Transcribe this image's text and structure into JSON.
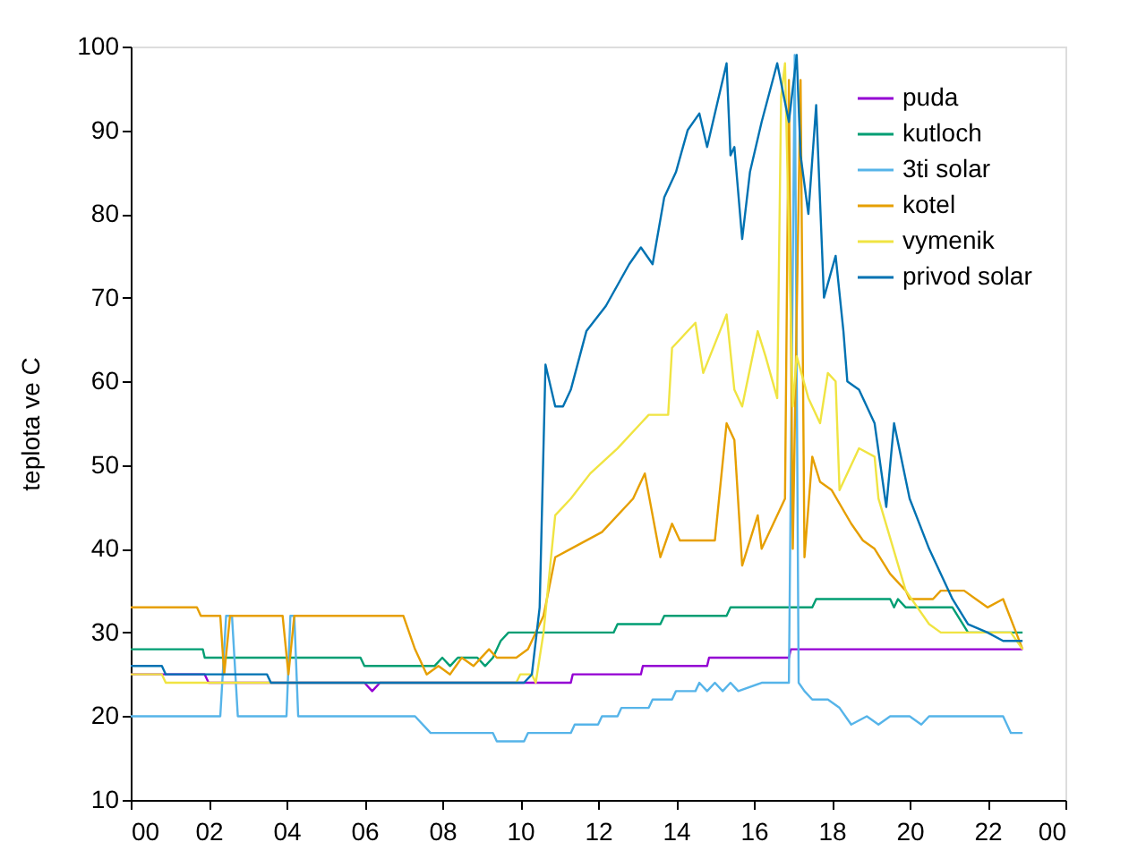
{
  "chart_data": {
    "type": "line",
    "ylabel": "teplota ve C",
    "xlim": [
      0,
      24
    ],
    "xticks": [
      {
        "value": 0,
        "label": "00"
      },
      {
        "value": 2,
        "label": "02"
      },
      {
        "value": 4,
        "label": "04"
      },
      {
        "value": 6,
        "label": "06"
      },
      {
        "value": 8,
        "label": "08"
      },
      {
        "value": 10,
        "label": "10"
      },
      {
        "value": 12,
        "label": "12"
      },
      {
        "value": 14,
        "label": "14"
      },
      {
        "value": 16,
        "label": "16"
      },
      {
        "value": 18,
        "label": "18"
      },
      {
        "value": 20,
        "label": "20"
      },
      {
        "value": 22,
        "label": "22"
      },
      {
        "value": 24,
        "label": "00"
      }
    ],
    "ylim": [
      10,
      100
    ],
    "yticks": [
      10,
      20,
      30,
      40,
      50,
      60,
      70,
      80,
      90,
      100
    ],
    "grid": false,
    "legend": "top right",
    "marker": "none",
    "line_style": "solid",
    "series": [
      {
        "name": "puda",
        "color": "#9400d3",
        "x": [
          0,
          1.9,
          2.0,
          6.0,
          6.2,
          6.4,
          11.3,
          11.35,
          13.1,
          13.15,
          14.8,
          14.85,
          16.9,
          16.95,
          22.9
        ],
        "values": [
          25,
          25,
          24,
          24,
          23,
          24,
          24,
          25,
          25,
          26,
          26,
          27,
          27,
          28,
          28
        ]
      },
      {
        "name": "kutloch",
        "color": "#009e73",
        "x": [
          0,
          1.85,
          1.9,
          5.9,
          6.0,
          7.8,
          8.0,
          8.2,
          8.4,
          8.9,
          9.1,
          9.3,
          9.5,
          9.7,
          12.4,
          12.5,
          13.6,
          13.7,
          15.3,
          15.4,
          17.5,
          17.6,
          19.5,
          19.6,
          19.7,
          19.9,
          21.1,
          21.5,
          22.9
        ],
        "values": [
          28,
          28,
          27,
          27,
          26,
          26,
          27,
          26,
          27,
          27,
          26,
          27,
          29,
          30,
          30,
          31,
          31,
          32,
          32,
          33,
          33,
          34,
          34,
          33,
          34,
          33,
          33,
          30,
          30
        ]
      },
      {
        "name": "3ti solar",
        "color": "#56b4e9",
        "x": [
          0,
          2.3,
          2.45,
          2.6,
          2.75,
          4.0,
          4.1,
          4.2,
          4.3,
          7.3,
          7.7,
          9.3,
          9.4,
          10.1,
          10.2,
          11.3,
          11.4,
          12.0,
          12.1,
          12.5,
          12.6,
          13.3,
          13.4,
          13.9,
          14.0,
          14.5,
          14.6,
          14.8,
          15.0,
          15.2,
          15.4,
          15.6,
          16.2,
          16.4,
          16.9,
          17.05,
          17.15,
          17.3,
          17.5,
          17.9,
          18.2,
          18.5,
          18.9,
          19.2,
          19.5,
          20.0,
          20.3,
          20.5,
          20.8,
          21.1,
          22.4,
          22.6,
          22.9
        ],
        "values": [
          20,
          20,
          32,
          32,
          20,
          20,
          32,
          32,
          20,
          20,
          18,
          18,
          17,
          17,
          18,
          18,
          19,
          19,
          20,
          20,
          21,
          21,
          22,
          22,
          23,
          23,
          24,
          23,
          24,
          23,
          24,
          23,
          24,
          24,
          24,
          99,
          24,
          23,
          22,
          22,
          21,
          19,
          20,
          19,
          20,
          20,
          19,
          20,
          20,
          20,
          20,
          18,
          18
        ]
      },
      {
        "name": "kotel",
        "color": "#e69f00",
        "x": [
          0,
          1.7,
          1.8,
          2.3,
          2.4,
          2.55,
          2.7,
          3.9,
          4.05,
          4.2,
          4.3,
          7.0,
          7.3,
          7.6,
          7.9,
          8.2,
          8.5,
          8.8,
          9.2,
          9.4,
          9.9,
          10.2,
          10.4,
          10.6,
          10.9,
          11.3,
          12.1,
          12.9,
          13.2,
          13.6,
          13.9,
          14.1,
          15.0,
          15.3,
          15.5,
          15.7,
          16.1,
          16.2,
          16.5,
          16.8,
          16.9,
          17.0,
          17.2,
          17.3,
          17.5,
          17.7,
          18.0,
          18.5,
          18.8,
          19.1,
          19.5,
          19.9,
          20.0,
          20.6,
          20.8,
          21.4,
          21.7,
          22.0,
          22.4,
          22.9
        ],
        "values": [
          33,
          33,
          32,
          32,
          25,
          32,
          32,
          32,
          25,
          32,
          32,
          32,
          28,
          25,
          26,
          25,
          27,
          26,
          28,
          27,
          27,
          28,
          30,
          32,
          39,
          40,
          42,
          46,
          49,
          39,
          43,
          41,
          41,
          55,
          53,
          38,
          44,
          40,
          43,
          46,
          96,
          40,
          96,
          39,
          51,
          48,
          47,
          43,
          41,
          40,
          37,
          35,
          34,
          34,
          35,
          35,
          34,
          33,
          34,
          28
        ]
      },
      {
        "name": "vymenik",
        "color": "#f0e442",
        "x": [
          0,
          0.8,
          0.9,
          9.9,
          10.0,
          10.3,
          10.4,
          10.6,
          10.9,
          11.3,
          11.8,
          12.5,
          13.1,
          13.3,
          13.8,
          13.9,
          14.5,
          14.7,
          15.3,
          15.5,
          15.7,
          16.1,
          16.3,
          16.6,
          16.7,
          16.8,
          17.0,
          17.1,
          17.4,
          17.7,
          17.9,
          18.1,
          18.2,
          18.7,
          19.1,
          19.2,
          19.9,
          20.5,
          20.8,
          22.6,
          22.9
        ],
        "values": [
          25,
          25,
          24,
          24,
          25,
          25,
          24,
          30,
          44,
          46,
          49,
          52,
          55,
          56,
          56,
          64,
          67,
          61,
          68,
          59,
          57,
          66,
          63,
          58,
          94,
          98,
          57,
          63,
          58,
          55,
          61,
          60,
          47,
          52,
          51,
          46,
          35,
          31,
          30,
          30,
          28
        ]
      },
      {
        "name": "privod solar",
        "color": "#0072b2",
        "x": [
          0,
          0.8,
          0.9,
          3.5,
          3.6,
          10.1,
          10.3,
          10.5,
          10.65,
          10.9,
          11.1,
          11.3,
          11.7,
          12.2,
          12.8,
          13.1,
          13.4,
          13.7,
          14.0,
          14.3,
          14.6,
          14.8,
          15.0,
          15.3,
          15.4,
          15.5,
          15.7,
          15.9,
          16.2,
          16.6,
          16.9,
          17.1,
          17.2,
          17.4,
          17.6,
          17.8,
          18.1,
          18.3,
          18.4,
          18.7,
          19.1,
          19.4,
          19.6,
          20.0,
          20.5,
          21.1,
          21.5,
          22.0,
          22.4,
          22.9
        ],
        "values": [
          26,
          26,
          25,
          25,
          24,
          24,
          25,
          33,
          62,
          57,
          57,
          59,
          66,
          69,
          74,
          76,
          74,
          82,
          85,
          90,
          92,
          88,
          92,
          98,
          87,
          88,
          77,
          85,
          91,
          98,
          91,
          99,
          87,
          80,
          93,
          70,
          75,
          66,
          60,
          59,
          55,
          45,
          55,
          46,
          40,
          34,
          31,
          30,
          29,
          29
        ]
      }
    ]
  }
}
